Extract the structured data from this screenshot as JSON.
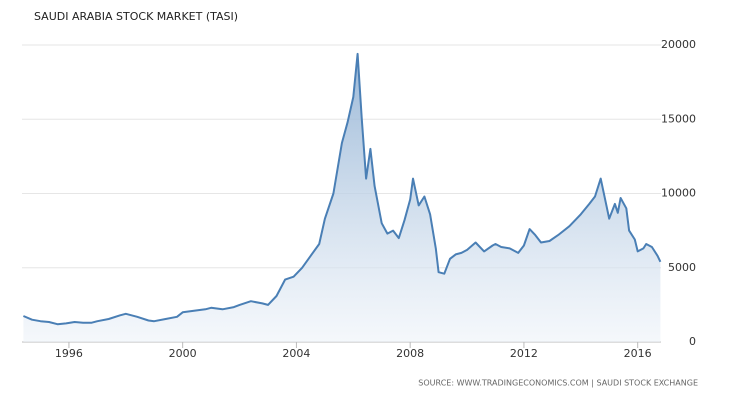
{
  "chart_data": {
    "type": "area",
    "title": "SAUDI ARABIA STOCK MARKET (TASI)",
    "source": "SOURCE: WWW.TRADINGECONOMICS.COM | SAUDI STOCK EXCHANGE",
    "color": "#4a7fb5",
    "grid": true,
    "x": [
      1994.4,
      1994.7,
      1995.0,
      1995.3,
      1995.6,
      1995.9,
      1996.2,
      1996.5,
      1996.8,
      1997.0,
      1997.4,
      1997.8,
      1998.0,
      1998.4,
      1998.8,
      1999.0,
      1999.4,
      1999.8,
      2000.0,
      2000.4,
      2000.8,
      2001.0,
      2001.4,
      2001.8,
      2002.0,
      2002.4,
      2002.8,
      2003.0,
      2003.3,
      2003.6,
      2003.9,
      2004.2,
      2004.5,
      2004.8,
      2005.0,
      2005.3,
      2005.6,
      2005.8,
      2006.0,
      2006.15,
      2006.3,
      2006.45,
      2006.6,
      2006.75,
      2007.0,
      2007.2,
      2007.4,
      2007.6,
      2007.8,
      2008.0,
      2008.1,
      2008.3,
      2008.5,
      2008.7,
      2008.9,
      2009.0,
      2009.2,
      2009.4,
      2009.6,
      2009.8,
      2010.0,
      2010.3,
      2010.6,
      2010.9,
      2011.0,
      2011.2,
      2011.5,
      2011.8,
      2012.0,
      2012.2,
      2012.4,
      2012.6,
      2012.9,
      2013.2,
      2013.6,
      2014.0,
      2014.3,
      2014.5,
      2014.7,
      2014.9,
      2015.0,
      2015.2,
      2015.3,
      2015.4,
      2015.6,
      2015.7,
      2015.9,
      2016.0,
      2016.2,
      2016.3,
      2016.5,
      2016.7,
      2016.8
    ],
    "values": [
      1750,
      1500,
      1400,
      1350,
      1200,
      1250,
      1350,
      1300,
      1300,
      1400,
      1550,
      1800,
      1900,
      1700,
      1450,
      1400,
      1550,
      1700,
      2000,
      2100,
      2200,
      2300,
      2200,
      2350,
      2500,
      2750,
      2600,
      2500,
      3100,
      4200,
      4400,
      5000,
      5800,
      6600,
      8300,
      10000,
      13400,
      14800,
      16500,
      19400,
      15000,
      11000,
      13000,
      10500,
      8000,
      7300,
      7500,
      7000,
      8200,
      9600,
      11000,
      9200,
      9800,
      8600,
      6300,
      4700,
      4600,
      5600,
      5900,
      6000,
      6200,
      6700,
      6100,
      6500,
      6600,
      6400,
      6300,
      6000,
      6500,
      7600,
      7200,
      6700,
      6800,
      7200,
      7800,
      8600,
      9300,
      9800,
      11000,
      9200,
      8300,
      9300,
      8700,
      9700,
      9000,
      7500,
      6900,
      6100,
      6300,
      6600,
      6400,
      5800,
      5400
    ],
    "xlim": [
      1994.35,
      2016.82
    ],
    "xticks": [
      1996,
      2000,
      2004,
      2008,
      2012,
      2016
    ],
    "ylim": [
      0,
      20000
    ],
    "yticks": [
      0,
      5000,
      10000,
      15000,
      20000
    ]
  }
}
